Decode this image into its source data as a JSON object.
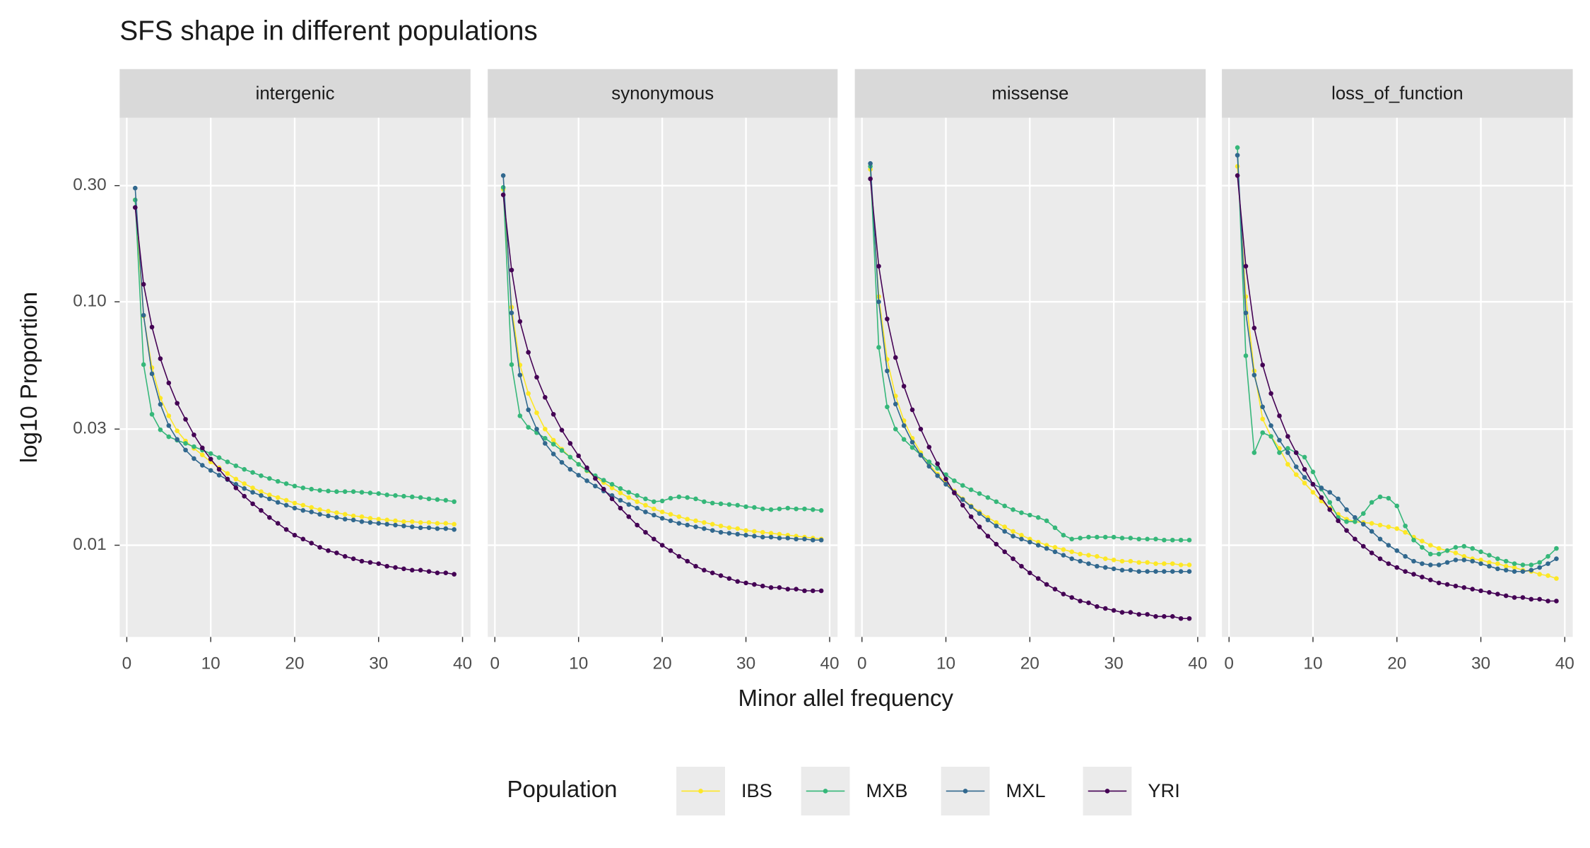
{
  "chart_data": {
    "type": "line",
    "title": "SFS shape in different populations",
    "xlabel": "Minor allel frequency",
    "ylabel": "log10  Proportion",
    "legend_title": "Population",
    "legend_position": "bottom",
    "log_y": true,
    "grid": true,
    "x": [
      1,
      2,
      3,
      4,
      5,
      6,
      7,
      8,
      9,
      10,
      11,
      12,
      13,
      14,
      15,
      16,
      17,
      18,
      19,
      20,
      21,
      22,
      23,
      24,
      25,
      26,
      27,
      28,
      29,
      30,
      31,
      32,
      33,
      34,
      35,
      36,
      37,
      38,
      39
    ],
    "xlim": [
      -0.85,
      40.95
    ],
    "xticks": [
      0,
      10,
      20,
      30,
      40
    ],
    "ylim": [
      0.0042,
      0.57
    ],
    "yticks": [
      0.01,
      0.03,
      {
        "value": 0.1,
        "label": "0.10"
      },
      {
        "value": 0.3,
        "label": "0.30"
      }
    ],
    "facets": [
      {
        "title": "intergenic",
        "series": [
          {
            "name": "IBS",
            "color": "#FDE725",
            "values": [
              0.262,
              0.0875,
              0.0536,
              0.0402,
              0.034,
              0.0295,
              0.0268,
              0.025,
              0.0235,
              0.022,
              0.0208,
              0.0197,
              0.0187,
              0.0179,
              0.0172,
              0.0166,
              0.0161,
              0.0157,
              0.0153,
              0.0149,
              0.0146,
              0.0143,
              0.014,
              0.0138,
              0.0136,
              0.0134,
              0.0132,
              0.0131,
              0.0129,
              0.0128,
              0.0127,
              0.0126,
              0.0125,
              0.0125,
              0.0124,
              0.0124,
              0.0123,
              0.0123,
              0.0122
            ]
          },
          {
            "name": "MXB",
            "color": "#35B779",
            "values": [
              0.262,
              0.0552,
              0.0345,
              0.0298,
              0.0279,
              0.027,
              0.0262,
              0.0254,
              0.0246,
              0.0238,
              0.0229,
              0.022,
              0.0212,
              0.0205,
              0.0199,
              0.0193,
              0.0188,
              0.0183,
              0.0179,
              0.0175,
              0.0172,
              0.017,
              0.0168,
              0.0167,
              0.0166,
              0.0166,
              0.0166,
              0.0165,
              0.0164,
              0.0163,
              0.0161,
              0.016,
              0.0159,
              0.0158,
              0.0157,
              0.0155,
              0.0154,
              0.0153,
              0.0151
            ]
          },
          {
            "name": "MXL",
            "color": "#31688E",
            "values": [
              0.293,
              0.088,
              0.0506,
              0.0379,
              0.031,
              0.0272,
              0.0246,
              0.0227,
              0.0213,
              0.0203,
              0.0194,
              0.0186,
              0.0178,
              0.0171,
              0.0165,
              0.016,
              0.0155,
              0.015,
              0.0146,
              0.0142,
              0.0139,
              0.0137,
              0.0134,
              0.0132,
              0.013,
              0.0128,
              0.0127,
              0.0125,
              0.0124,
              0.0123,
              0.0122,
              0.0121,
              0.012,
              0.0119,
              0.0118,
              0.0118,
              0.0117,
              0.0117,
              0.0116
            ]
          },
          {
            "name": "YRI",
            "color": "#440154",
            "values": [
              0.244,
              0.118,
              0.0787,
              0.0584,
              0.0464,
              0.0383,
              0.0329,
              0.0284,
              0.0251,
              0.0226,
              0.0205,
              0.0187,
              0.0172,
              0.0159,
              0.0148,
              0.0139,
              0.013,
              0.0123,
              0.0116,
              0.011,
              0.0106,
              0.0102,
              0.0098,
              0.0095,
              0.0093,
              0.009,
              0.0088,
              0.0086,
              0.0085,
              0.0084,
              0.0082,
              0.0081,
              0.008,
              0.0079,
              0.0079,
              0.0078,
              0.0077,
              0.0077,
              0.0076
            ]
          }
        ]
      },
      {
        "title": "synonymous",
        "series": [
          {
            "name": "IBS",
            "color": "#FDE725",
            "values": [
              0.29,
              0.095,
              0.055,
              0.042,
              0.035,
              0.03,
              0.027,
              0.0248,
              0.023,
              0.0215,
              0.0202,
              0.0191,
              0.0181,
              0.0172,
              0.0164,
              0.0157,
              0.0151,
              0.0146,
              0.0141,
              0.0137,
              0.0134,
              0.0131,
              0.0128,
              0.0126,
              0.0124,
              0.0122,
              0.012,
              0.0118,
              0.0117,
              0.0115,
              0.0114,
              0.0113,
              0.0112,
              0.0111,
              0.011,
              0.0109,
              0.0108,
              0.0107,
              0.0106
            ]
          },
          {
            "name": "MXB",
            "color": "#35B779",
            "values": [
              0.295,
              0.0552,
              0.034,
              0.0305,
              0.029,
              0.0275,
              0.026,
              0.0245,
              0.023,
              0.0215,
              0.0203,
              0.0193,
              0.0185,
              0.0178,
              0.0171,
              0.0165,
              0.016,
              0.0155,
              0.0151,
              0.0152,
              0.0156,
              0.0158,
              0.0157,
              0.0155,
              0.0151,
              0.0149,
              0.0148,
              0.0147,
              0.0146,
              0.0144,
              0.0143,
              0.0141,
              0.014,
              0.0141,
              0.0142,
              0.0141,
              0.0141,
              0.014,
              0.0139
            ]
          },
          {
            "name": "MXL",
            "color": "#31688E",
            "values": [
              0.33,
              0.09,
              0.05,
              0.036,
              0.03,
              0.0262,
              0.0237,
              0.0219,
              0.0205,
              0.0194,
              0.0184,
              0.0175,
              0.0167,
              0.016,
              0.0153,
              0.0147,
              0.0142,
              0.0137,
              0.0133,
              0.0129,
              0.0126,
              0.0123,
              0.0121,
              0.0119,
              0.0117,
              0.0115,
              0.0113,
              0.0112,
              0.0111,
              0.011,
              0.0109,
              0.0108,
              0.0108,
              0.0107,
              0.0107,
              0.0106,
              0.0106,
              0.0105,
              0.0105
            ]
          },
          {
            "name": "YRI",
            "color": "#440154",
            "values": [
              0.275,
              0.135,
              0.083,
              0.062,
              0.049,
              0.0405,
              0.0345,
              0.0297,
              0.0262,
              0.0233,
              0.0208,
              0.0188,
              0.017,
              0.0155,
              0.0142,
              0.0131,
              0.0121,
              0.0113,
              0.0106,
              0.01,
              0.0095,
              0.009,
              0.0086,
              0.0082,
              0.0079,
              0.0077,
              0.0075,
              0.0073,
              0.0071,
              0.007,
              0.0069,
              0.0068,
              0.0067,
              0.0067,
              0.0066,
              0.0066,
              0.0065,
              0.0065,
              0.0065
            ]
          }
        ]
      },
      {
        "title": "missense",
        "series": [
          {
            "name": "IBS",
            "color": "#FDE725",
            "values": [
              0.35,
              0.105,
              0.058,
              0.041,
              0.0325,
              0.0275,
              0.024,
              0.0215,
              0.0196,
              0.018,
              0.0167,
              0.0155,
              0.0145,
              0.0137,
              0.013,
              0.0124,
              0.0119,
              0.0114,
              0.011,
              0.0106,
              0.0103,
              0.01,
              0.0098,
              0.0096,
              0.0094,
              0.0092,
              0.0091,
              0.009,
              0.0088,
              0.0087,
              0.0086,
              0.0086,
              0.0085,
              0.0085,
              0.0084,
              0.0084,
              0.0084,
              0.0083,
              0.0083
            ]
          },
          {
            "name": "MXB",
            "color": "#35B779",
            "values": [
              0.36,
              0.065,
              0.037,
              0.03,
              0.0272,
              0.0252,
              0.0235,
              0.022,
              0.0207,
              0.0195,
              0.0184,
              0.0176,
              0.0169,
              0.0163,
              0.0157,
              0.0151,
              0.0145,
              0.014,
              0.0136,
              0.0133,
              0.013,
              0.0126,
              0.0118,
              0.011,
              0.0106,
              0.0107,
              0.0108,
              0.0108,
              0.0108,
              0.0108,
              0.0107,
              0.0107,
              0.0106,
              0.0106,
              0.0106,
              0.0105,
              0.0105,
              0.0105,
              0.0105
            ]
          },
          {
            "name": "MXL",
            "color": "#31688E",
            "values": [
              0.37,
              0.1,
              0.052,
              0.038,
              0.031,
              0.0265,
              0.0234,
              0.0211,
              0.0193,
              0.0178,
              0.0165,
              0.0154,
              0.0144,
              0.0135,
              0.0127,
              0.012,
              0.0114,
              0.0109,
              0.0106,
              0.0103,
              0.01,
              0.0097,
              0.0094,
              0.0091,
              0.0088,
              0.0086,
              0.0084,
              0.0082,
              0.0081,
              0.008,
              0.0079,
              0.0079,
              0.0078,
              0.0078,
              0.0078,
              0.0078,
              0.0078,
              0.0078,
              0.0078
            ]
          },
          {
            "name": "YRI",
            "color": "#440154",
            "values": [
              0.32,
              0.14,
              0.085,
              0.059,
              0.045,
              0.036,
              0.03,
              0.0253,
              0.0216,
              0.0187,
              0.0164,
              0.0146,
              0.0131,
              0.0119,
              0.0109,
              0.0101,
              0.0094,
              0.0088,
              0.0082,
              0.0077,
              0.0073,
              0.0069,
              0.0066,
              0.0063,
              0.0061,
              0.0059,
              0.0058,
              0.0056,
              0.0055,
              0.0054,
              0.0053,
              0.0053,
              0.0052,
              0.0052,
              0.0051,
              0.0051,
              0.0051,
              0.005,
              0.005
            ]
          }
        ]
      },
      {
        "title": "loss_of_function",
        "series": [
          {
            "name": "IBS",
            "color": "#FDE725",
            "values": [
              0.36,
              0.105,
              0.052,
              0.033,
              0.028,
              0.025,
              0.0215,
              0.0195,
              0.018,
              0.0165,
              0.0152,
              0.0142,
              0.0134,
              0.0128,
              0.0125,
              0.0124,
              0.0123,
              0.0121,
              0.0119,
              0.0117,
              0.0113,
              0.0108,
              0.0104,
              0.01,
              0.0097,
              0.0095,
              0.0093,
              0.009,
              0.0088,
              0.0087,
              0.0085,
              0.0084,
              0.0082,
              0.0081,
              0.0079,
              0.0078,
              0.0076,
              0.0075,
              0.0073
            ]
          },
          {
            "name": "MXB",
            "color": "#35B779",
            "values": [
              0.43,
              0.06,
              0.024,
              0.029,
              0.028,
              0.024,
              0.025,
              0.024,
              0.023,
              0.02,
              0.017,
              0.015,
              0.013,
              0.0125,
              0.0125,
              0.0135,
              0.015,
              0.0158,
              0.0156,
              0.0145,
              0.012,
              0.0105,
              0.0098,
              0.0092,
              0.0092,
              0.0095,
              0.0098,
              0.0099,
              0.0097,
              0.0094,
              0.0091,
              0.0088,
              0.0086,
              0.0084,
              0.0083,
              0.0083,
              0.0085,
              0.009,
              0.0097
            ]
          },
          {
            "name": "MXL",
            "color": "#31688E",
            "values": [
              0.4,
              0.09,
              0.05,
              0.037,
              0.031,
              0.027,
              0.024,
              0.021,
              0.019,
              0.0178,
              0.0172,
              0.0165,
              0.0155,
              0.014,
              0.013,
              0.0122,
              0.0114,
              0.0106,
              0.01,
              0.0095,
              0.009,
              0.0086,
              0.0084,
              0.0083,
              0.0083,
              0.0085,
              0.0087,
              0.0087,
              0.0086,
              0.0084,
              0.0082,
              0.008,
              0.0079,
              0.0078,
              0.0078,
              0.0079,
              0.0081,
              0.0084,
              0.0088
            ]
          },
          {
            "name": "YRI",
            "color": "#440154",
            "values": [
              0.33,
              0.14,
              0.078,
              0.055,
              0.042,
              0.034,
              0.028,
              0.024,
              0.0205,
              0.0178,
              0.0157,
              0.014,
              0.0126,
              0.0115,
              0.0106,
              0.0099,
              0.0093,
              0.0088,
              0.0084,
              0.0081,
              0.0078,
              0.0076,
              0.0074,
              0.0072,
              0.007,
              0.0069,
              0.0068,
              0.0067,
              0.0066,
              0.0065,
              0.0064,
              0.0063,
              0.0062,
              0.0061,
              0.0061,
              0.006,
              0.006,
              0.0059,
              0.0059
            ]
          }
        ]
      }
    ]
  }
}
